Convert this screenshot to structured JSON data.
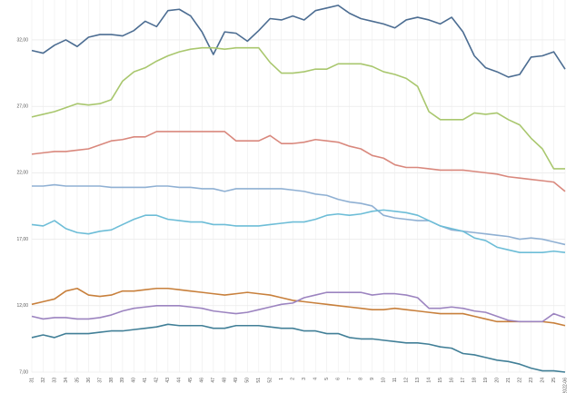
{
  "chart_data": {
    "type": "line",
    "categories": [
      "31",
      "32",
      "33",
      "34",
      "35",
      "36",
      "37",
      "38",
      "39",
      "40",
      "41",
      "42",
      "43",
      "44",
      "45",
      "46",
      "47",
      "48",
      "49",
      "50",
      "51",
      "52",
      "1",
      "2",
      "3",
      "4",
      "5",
      "6",
      "7",
      "8",
      "9",
      "10",
      "11",
      "12",
      "13",
      "14",
      "15",
      "16",
      "17",
      "18",
      "19",
      "20",
      "21",
      "22",
      "23",
      "24",
      "25",
      "2022-06"
    ],
    "series": [
      {
        "color": "#4c6d92",
        "values": [
          31.2,
          31.0,
          31.6,
          32.0,
          31.5,
          32.2,
          32.4,
          32.4,
          32.3,
          32.7,
          33.4,
          33.0,
          34.2,
          34.3,
          33.8,
          32.6,
          30.9,
          32.6,
          32.5,
          31.9,
          32.7,
          33.6,
          33.5,
          33.8,
          33.5,
          34.2,
          34.4,
          34.6,
          34.0,
          33.6,
          33.4,
          33.2,
          32.9,
          33.5,
          33.7,
          33.5,
          33.2,
          33.7,
          32.6,
          30.8,
          29.9,
          29.6,
          29.2,
          29.4,
          30.7,
          30.8,
          31.1,
          29.8
        ]
      },
      {
        "color": "#a9c76e",
        "values": [
          26.2,
          26.4,
          26.6,
          26.9,
          27.2,
          27.1,
          27.2,
          27.5,
          28.9,
          29.6,
          29.9,
          30.4,
          30.8,
          31.1,
          31.3,
          31.4,
          31.4,
          31.3,
          31.4,
          31.4,
          31.4,
          30.3,
          29.5,
          29.5,
          29.6,
          29.8,
          29.8,
          30.2,
          30.2,
          30.2,
          30.0,
          29.6,
          29.4,
          29.1,
          28.5,
          26.6,
          26.0,
          26.0,
          26.0,
          26.5,
          26.4,
          26.5,
          26.0,
          25.6,
          24.6,
          23.8,
          22.3,
          22.3
        ]
      },
      {
        "color": "#d9887d",
        "values": [
          23.4,
          23.5,
          23.6,
          23.6,
          23.7,
          23.8,
          24.1,
          24.4,
          24.5,
          24.7,
          24.7,
          25.1,
          25.1,
          25.1,
          25.1,
          25.1,
          25.1,
          25.1,
          24.4,
          24.4,
          24.4,
          24.8,
          24.2,
          24.2,
          24.3,
          24.5,
          24.4,
          24.3,
          24.0,
          23.8,
          23.3,
          23.1,
          22.6,
          22.4,
          22.4,
          22.3,
          22.2,
          22.2,
          22.2,
          22.1,
          22.0,
          21.9,
          21.7,
          21.6,
          21.5,
          21.4,
          21.3,
          20.6
        ]
      },
      {
        "color": "#8fb0d3",
        "values": [
          21.0,
          21.0,
          21.1,
          21.0,
          21.0,
          21.0,
          21.0,
          20.9,
          20.9,
          20.9,
          20.9,
          21.0,
          21.0,
          20.9,
          20.9,
          20.8,
          20.8,
          20.6,
          20.8,
          20.8,
          20.8,
          20.8,
          20.8,
          20.7,
          20.6,
          20.4,
          20.3,
          20.0,
          19.8,
          19.7,
          19.5,
          18.8,
          18.6,
          18.5,
          18.4,
          18.4,
          18.0,
          17.7,
          17.6,
          17.5,
          17.4,
          17.3,
          17.2,
          17.0,
          17.1,
          17.0,
          16.8,
          16.6
        ]
      },
      {
        "color": "#6dbdd7",
        "values": [
          18.1,
          18.0,
          18.4,
          17.8,
          17.5,
          17.4,
          17.6,
          17.7,
          18.1,
          18.5,
          18.8,
          18.8,
          18.5,
          18.4,
          18.3,
          18.3,
          18.1,
          18.1,
          18.0,
          18.0,
          18.0,
          18.1,
          18.2,
          18.3,
          18.3,
          18.5,
          18.8,
          18.9,
          18.8,
          18.9,
          19.1,
          19.2,
          19.1,
          19.0,
          18.8,
          18.4,
          18.0,
          17.8,
          17.6,
          17.1,
          16.9,
          16.4,
          16.2,
          16.0,
          16.0,
          16.0,
          16.1,
          16.0
        ]
      },
      {
        "color": "#c8803c",
        "values": [
          12.1,
          12.3,
          12.5,
          13.1,
          13.3,
          12.8,
          12.7,
          12.8,
          13.1,
          13.1,
          13.2,
          13.3,
          13.3,
          13.2,
          13.1,
          13.0,
          12.9,
          12.8,
          12.9,
          13.0,
          12.9,
          12.8,
          12.6,
          12.4,
          12.3,
          12.2,
          12.1,
          12.0,
          11.9,
          11.8,
          11.7,
          11.7,
          11.8,
          11.7,
          11.6,
          11.5,
          11.4,
          11.4,
          11.4,
          11.2,
          11.0,
          10.8,
          10.8,
          10.8,
          10.8,
          10.8,
          10.7,
          10.5
        ]
      },
      {
        "color": "#9c84c0",
        "values": [
          11.2,
          11.0,
          11.1,
          11.1,
          11.0,
          11.0,
          11.1,
          11.3,
          11.6,
          11.8,
          11.9,
          12.0,
          12.0,
          12.0,
          11.9,
          11.8,
          11.6,
          11.5,
          11.4,
          11.5,
          11.7,
          11.9,
          12.1,
          12.2,
          12.6,
          12.8,
          13.0,
          13.0,
          13.0,
          13.0,
          12.8,
          12.9,
          12.9,
          12.8,
          12.6,
          11.8,
          11.8,
          11.9,
          11.8,
          11.6,
          11.5,
          11.2,
          10.9,
          10.8,
          10.8,
          10.8,
          11.4,
          11.1
        ]
      },
      {
        "color": "#417f97",
        "values": [
          9.6,
          9.8,
          9.6,
          9.9,
          9.9,
          9.9,
          10.0,
          10.1,
          10.1,
          10.2,
          10.3,
          10.4,
          10.6,
          10.5,
          10.5,
          10.5,
          10.3,
          10.3,
          10.5,
          10.5,
          10.5,
          10.4,
          10.3,
          10.3,
          10.1,
          10.1,
          9.9,
          9.9,
          9.6,
          9.5,
          9.5,
          9.4,
          9.3,
          9.2,
          9.2,
          9.1,
          8.9,
          8.8,
          8.4,
          8.3,
          8.1,
          7.9,
          7.8,
          7.6,
          7.3,
          7.1,
          7.1,
          7.0
        ]
      }
    ],
    "ylim": [
      7,
      35
    ],
    "yticks": [
      {
        "value": 7,
        "label": "7,00"
      },
      {
        "value": 12,
        "label": "12,00"
      },
      {
        "value": 17,
        "label": "17,00"
      },
      {
        "value": 22,
        "label": "22,00"
      },
      {
        "value": 27,
        "label": "27,00"
      },
      {
        "value": 32,
        "label": "32,00"
      }
    ],
    "grid": true
  }
}
